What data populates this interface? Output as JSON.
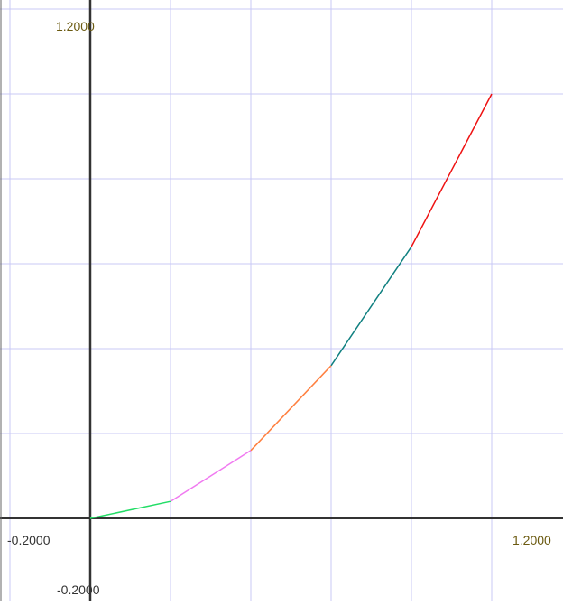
{
  "chart_data": {
    "type": "line",
    "title": "",
    "xlabel": "",
    "ylabel": "",
    "xlim": [
      -0.2,
      1.2
    ],
    "ylim": [
      -0.2,
      1.2
    ],
    "grid": true,
    "tick_labels": {
      "x_min": "-0.2000",
      "x_max": "1.2000",
      "y_max": "1.2000",
      "y_min": "-0.2000"
    },
    "colors": {
      "grid": "#c8c8f5",
      "axis": "#333333",
      "label": "#6b5a10",
      "label_dark": "#333333"
    },
    "series": [
      {
        "color": "#22dd66",
        "x": [
          0.0,
          0.2
        ],
        "y": [
          0.0,
          0.04
        ]
      },
      {
        "color": "#f07af0",
        "x": [
          0.2,
          0.4
        ],
        "y": [
          0.04,
          0.16
        ]
      },
      {
        "color": "#ff8040",
        "x": [
          0.4,
          0.6
        ],
        "y": [
          0.16,
          0.36
        ]
      },
      {
        "color": "#108080",
        "x": [
          0.6,
          0.8
        ],
        "y": [
          0.36,
          0.64
        ]
      },
      {
        "color": "#ee1111",
        "x": [
          0.8,
          1.0
        ],
        "y": [
          0.64,
          1.0
        ]
      }
    ]
  }
}
